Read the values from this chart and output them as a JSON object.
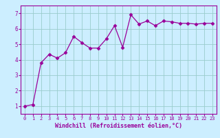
{
  "x": [
    0,
    1,
    2,
    3,
    4,
    5,
    6,
    7,
    8,
    9,
    10,
    11,
    12,
    13,
    14,
    15,
    16,
    17,
    18,
    19,
    20,
    21,
    22,
    23
  ],
  "y": [
    1.0,
    1.1,
    3.8,
    4.35,
    4.1,
    4.45,
    5.5,
    5.1,
    4.75,
    4.75,
    5.35,
    6.2,
    4.8,
    6.9,
    6.3,
    6.5,
    6.2,
    6.5,
    6.45,
    6.35,
    6.35,
    6.3,
    6.35,
    6.35
  ],
  "line_color": "#990099",
  "marker": "D",
  "marker_size": 2.5,
  "bg_color": "#cceeff",
  "grid_color": "#99cccc",
  "xlabel": "Windchill (Refroidissement éolien,°C)",
  "xlabel_color": "#990099",
  "tick_color": "#990099",
  "xlim": [
    -0.5,
    23.5
  ],
  "ylim": [
    0.5,
    7.5
  ],
  "yticks": [
    1,
    2,
    3,
    4,
    5,
    6,
    7
  ],
  "xticks": [
    0,
    1,
    2,
    3,
    4,
    5,
    6,
    7,
    8,
    9,
    10,
    11,
    12,
    13,
    14,
    15,
    16,
    17,
    18,
    19,
    20,
    21,
    22,
    23
  ]
}
